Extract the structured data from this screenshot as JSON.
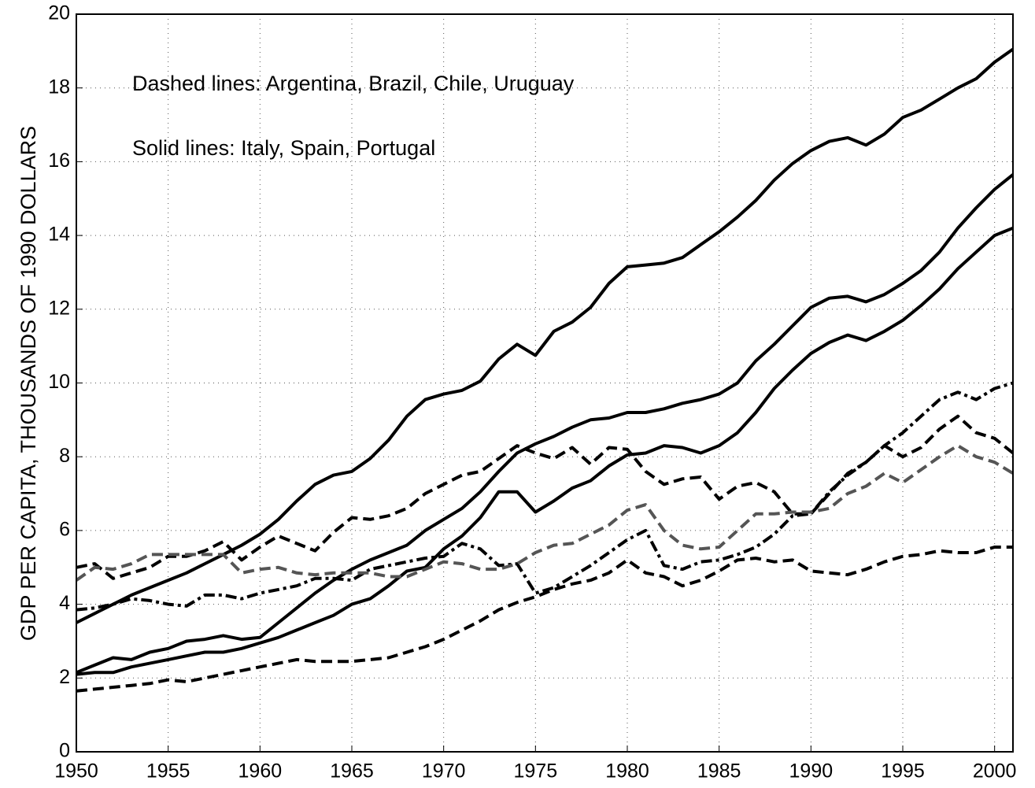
{
  "chart_data": {
    "type": "line",
    "ylabel": "GDP PER CAPITA, THOUSANDS OF 1990 DOLLARS",
    "annotations": [
      "Dashed lines: Argentina, Brazil, Chile, Uruguay",
      "Solid lines: Italy, Spain, Portugal"
    ],
    "x": [
      1950,
      1951,
      1952,
      1953,
      1954,
      1955,
      1956,
      1957,
      1958,
      1959,
      1960,
      1961,
      1962,
      1963,
      1964,
      1965,
      1966,
      1967,
      1968,
      1969,
      1970,
      1971,
      1972,
      1973,
      1974,
      1975,
      1976,
      1977,
      1978,
      1979,
      1980,
      1981,
      1982,
      1983,
      1984,
      1985,
      1986,
      1987,
      1988,
      1989,
      1990,
      1991,
      1992,
      1993,
      1994,
      1995,
      1996,
      1997,
      1998,
      1999,
      2000,
      2001
    ],
    "xlim": [
      1950,
      2001
    ],
    "xticks": [
      1950,
      1955,
      1960,
      1965,
      1970,
      1975,
      1980,
      1985,
      1990,
      1995,
      2000
    ],
    "ylim": [
      0,
      20
    ],
    "yticks": [
      0,
      2,
      4,
      6,
      8,
      10,
      12,
      14,
      16,
      18,
      20
    ],
    "grid": true,
    "series": [
      {
        "color": "#000000",
        "style": "solid",
        "values": [
          3.5,
          3.75,
          4.0,
          4.25,
          4.45,
          4.65,
          4.85,
          5.1,
          5.35,
          5.6,
          5.9,
          6.3,
          6.8,
          7.25,
          7.5,
          7.6,
          7.95,
          8.45,
          9.1,
          9.55,
          9.7,
          9.8,
          10.05,
          10.65,
          11.05,
          10.75,
          11.4,
          11.65,
          12.05,
          12.7,
          13.15,
          13.2,
          13.25,
          13.4,
          13.75,
          14.1,
          14.5,
          14.95,
          15.5,
          15.95,
          16.3,
          16.55,
          16.65,
          16.45,
          16.75,
          17.2,
          17.4,
          17.7,
          18.0,
          18.25,
          18.7,
          19.05
        ]
      },
      {
        "color": "#000000",
        "style": "solid",
        "values": [
          2.15,
          2.35,
          2.55,
          2.5,
          2.7,
          2.8,
          3.0,
          3.05,
          3.15,
          3.05,
          3.1,
          3.5,
          3.9,
          4.3,
          4.65,
          4.95,
          5.2,
          5.4,
          5.6,
          6.0,
          6.3,
          6.6,
          7.05,
          7.6,
          8.1,
          8.35,
          8.55,
          8.8,
          9.0,
          9.05,
          9.2,
          9.2,
          9.3,
          9.45,
          9.55,
          9.7,
          10.0,
          10.6,
          11.05,
          11.55,
          12.05,
          12.3,
          12.35,
          12.2,
          12.4,
          12.7,
          13.05,
          13.55,
          14.2,
          14.75,
          15.25,
          15.65
        ]
      },
      {
        "color": "#000000",
        "style": "solid",
        "values": [
          2.1,
          2.15,
          2.15,
          2.3,
          2.4,
          2.5,
          2.6,
          2.7,
          2.7,
          2.8,
          2.95,
          3.1,
          3.3,
          3.5,
          3.7,
          4.0,
          4.15,
          4.5,
          4.9,
          5.0,
          5.5,
          5.85,
          6.35,
          7.05,
          7.05,
          6.5,
          6.8,
          7.15,
          7.35,
          7.75,
          8.05,
          8.1,
          8.3,
          8.25,
          8.1,
          8.3,
          8.65,
          9.2,
          9.85,
          10.35,
          10.8,
          11.1,
          11.3,
          11.15,
          11.4,
          11.7,
          12.1,
          12.55,
          13.1,
          13.55,
          14.0,
          14.2
        ]
      },
      {
        "color": "#000000",
        "style": "dashed",
        "values": [
          5.0,
          5.1,
          4.7,
          4.85,
          5.0,
          5.3,
          5.3,
          5.45,
          5.7,
          5.2,
          5.55,
          5.85,
          5.65,
          5.45,
          5.95,
          6.35,
          6.3,
          6.4,
          6.6,
          7.0,
          7.25,
          7.5,
          7.6,
          7.95,
          8.3,
          8.1,
          7.95,
          8.25,
          7.8,
          8.25,
          8.2,
          7.6,
          7.25,
          7.4,
          7.45,
          6.85,
          7.2,
          7.3,
          7.05,
          6.45,
          6.45,
          7.0,
          7.55,
          7.85,
          8.3,
          8.0,
          8.25,
          8.75,
          9.1,
          8.65,
          8.5,
          8.1
        ]
      },
      {
        "color": "#000000",
        "style": "dashed",
        "values": [
          1.65,
          1.7,
          1.75,
          1.8,
          1.85,
          1.95,
          1.9,
          2.0,
          2.1,
          2.2,
          2.3,
          2.4,
          2.5,
          2.45,
          2.45,
          2.45,
          2.5,
          2.55,
          2.7,
          2.85,
          3.05,
          3.3,
          3.55,
          3.85,
          4.05,
          4.2,
          4.4,
          4.55,
          4.65,
          4.85,
          5.2,
          4.85,
          4.75,
          4.5,
          4.65,
          4.9,
          5.2,
          5.25,
          5.15,
          5.2,
          4.9,
          4.85,
          4.8,
          4.95,
          5.15,
          5.3,
          5.35,
          5.45,
          5.4,
          5.4,
          5.55,
          5.55
        ]
      },
      {
        "color": "#000000",
        "style": "dashdot",
        "values": [
          3.85,
          3.9,
          4.0,
          4.15,
          4.1,
          4.0,
          3.95,
          4.25,
          4.25,
          4.15,
          4.3,
          4.4,
          4.5,
          4.7,
          4.7,
          4.65,
          4.95,
          5.05,
          5.15,
          5.25,
          5.3,
          5.65,
          5.5,
          5.05,
          5.1,
          4.3,
          4.45,
          4.75,
          5.05,
          5.4,
          5.75,
          6.0,
          5.05,
          4.95,
          5.15,
          5.2,
          5.35,
          5.55,
          5.9,
          6.4,
          6.45,
          7.05,
          7.5,
          7.85,
          8.3,
          8.65,
          9.1,
          9.55,
          9.75,
          9.55,
          9.85,
          10.0
        ]
      },
      {
        "color": "#555555",
        "style": "dashed",
        "values": [
          4.65,
          5.0,
          4.95,
          5.1,
          5.35,
          5.35,
          5.35,
          5.35,
          5.35,
          4.85,
          4.95,
          5.0,
          4.85,
          4.8,
          4.85,
          4.85,
          4.85,
          4.75,
          4.75,
          4.95,
          5.15,
          5.1,
          4.95,
          4.95,
          5.1,
          5.4,
          5.6,
          5.65,
          5.9,
          6.15,
          6.55,
          6.7,
          6.0,
          5.6,
          5.5,
          5.55,
          6.0,
          6.45,
          6.45,
          6.5,
          6.5,
          6.6,
          7.0,
          7.2,
          7.55,
          7.3,
          7.65,
          8.0,
          8.3,
          8.0,
          7.85,
          7.55
        ]
      }
    ]
  }
}
